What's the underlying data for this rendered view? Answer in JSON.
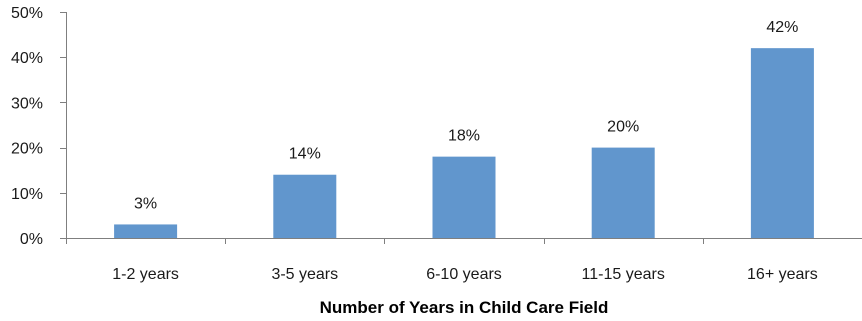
{
  "chart_data": {
    "type": "bar",
    "title": "",
    "xlabel": "Number of Years in Child Care Field",
    "ylabel": "",
    "categories": [
      "1-2 years",
      "3-5 years",
      "6-10 years",
      "11-15 years",
      "16+ years"
    ],
    "values": [
      3,
      14,
      18,
      20,
      42
    ],
    "data_labels": [
      "3%",
      "14%",
      "18%",
      "20%",
      "42%"
    ],
    "ylim": [
      0,
      50
    ],
    "yticks": [
      0,
      10,
      20,
      30,
      40,
      50
    ],
    "ytick_labels": [
      "0%",
      "10%",
      "20%",
      "30%",
      "40%",
      "50%"
    ],
    "grid": false,
    "legend": "none",
    "bar_color": "#6196CD"
  }
}
